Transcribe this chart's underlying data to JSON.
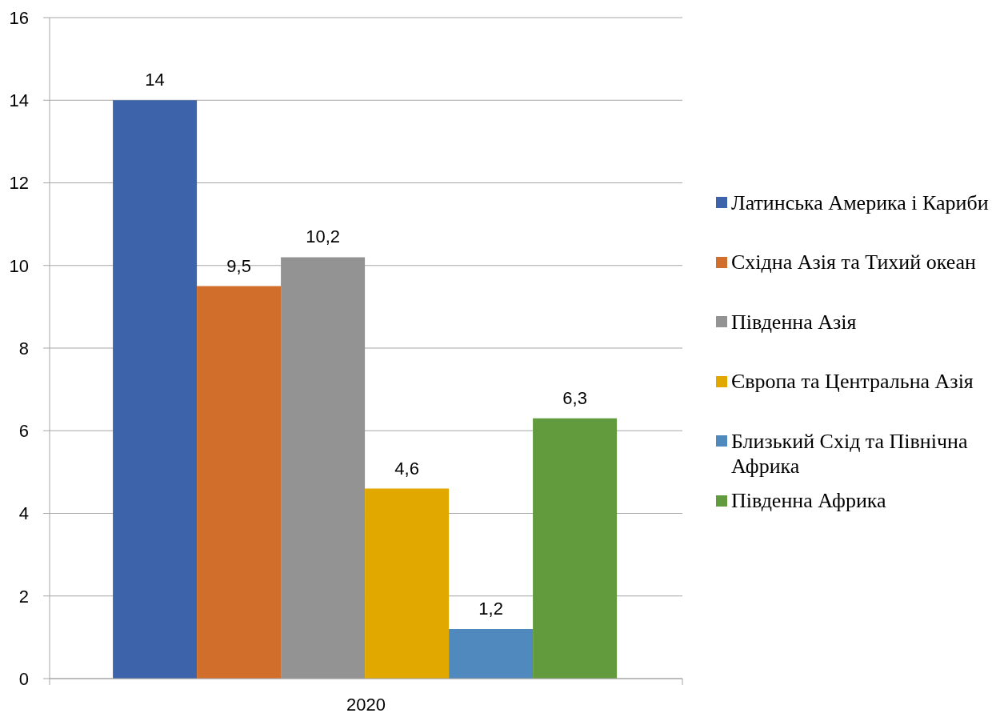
{
  "chart_data": {
    "type": "bar",
    "categories": [
      "2020"
    ],
    "series": [
      {
        "name": "Латинська Америка і Кариби",
        "color": "#3d64ab",
        "values": [
          14
        ],
        "value_labels": [
          "14"
        ]
      },
      {
        "name": "Східна Азія та Тихий океан",
        "color": "#d26e2b",
        "values": [
          9.5
        ],
        "value_labels": [
          "9,5"
        ]
      },
      {
        "name": "Південна Азія",
        "color": "#939393",
        "values": [
          10.2
        ],
        "value_labels": [
          "10,2"
        ]
      },
      {
        "name": "Європа та Центральна Азія",
        "color": "#e1a900",
        "values": [
          4.6
        ],
        "value_labels": [
          "4,6"
        ]
      },
      {
        "name": "Близький Схід та Північна Африка",
        "color": "#4f89bd",
        "values": [
          1.2
        ],
        "value_labels": [
          "1,2"
        ]
      },
      {
        "name": "Південна Африка",
        "color": "#629b3e",
        "values": [
          6.3
        ],
        "value_labels": [
          "6,3"
        ]
      }
    ],
    "ylim": [
      0,
      16
    ],
    "yticks": [
      0,
      2,
      4,
      6,
      8,
      10,
      12,
      14,
      16
    ],
    "grid": "y",
    "legend": "right"
  }
}
